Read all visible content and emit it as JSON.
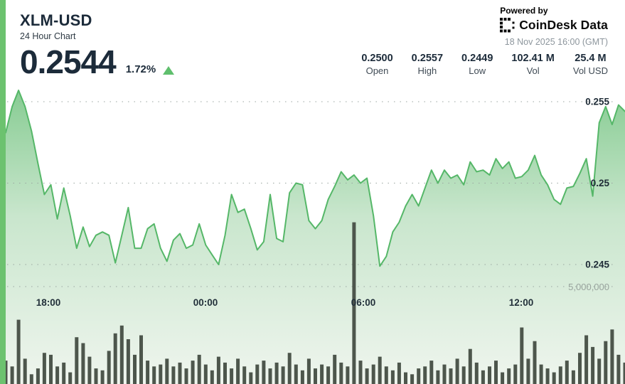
{
  "widget": {
    "pair": "XLM-USD",
    "subtitle": "24 Hour Chart",
    "price": "0.2544",
    "change_percent": "1.72%",
    "change_direction": "up"
  },
  "attribution": {
    "powered_by": "Powered by",
    "brand": "CoinDesk Data",
    "timestamp": "18 Nov 2025 16:00 (GMT)"
  },
  "stats": [
    {
      "value": "0.2500",
      "label": "Open"
    },
    {
      "value": "0.2557",
      "label": "High"
    },
    {
      "value": "0.2449",
      "label": "Low"
    },
    {
      "value": "102.41 M",
      "label": "Vol"
    },
    {
      "value": "25.4 M",
      "label": "Vol USD"
    }
  ],
  "colors": {
    "accent_green": "#6cc26f",
    "line_green": "#55b768",
    "fill_top": "#82ca8e",
    "fill_mid": "#c9e6cd",
    "fill_bottom": "#eff5ee",
    "volume_bar": "#4d564c",
    "grid": "#9aa5a0",
    "triangle_green": "#5fbf6d",
    "text_dark": "#1c2b3a",
    "text_gray": "#8d969d"
  },
  "chart_data": {
    "type": "area",
    "title": "XLM-USD 24 Hour Chart",
    "x_start": "16:00",
    "x_interval_minutes": 15,
    "x_tick_labels": [
      "18:00",
      "00:00",
      "06:00",
      "12:00"
    ],
    "y_ticks": [
      0.255,
      0.25,
      0.245
    ],
    "y_tick_labels": [
      "0.255",
      "0.25",
      "0.245"
    ],
    "y_range": [
      0.2449,
      0.2557
    ],
    "volume_tick_value_millions": 5,
    "volume_tick_label": "5,000,000",
    "legend": "none",
    "grid": "dotted-horizontal",
    "price_series": [
      0.2531,
      0.2547,
      0.2557,
      0.2547,
      0.2532,
      0.2512,
      0.2493,
      0.2499,
      0.2478,
      0.2497,
      0.248,
      0.246,
      0.2473,
      0.2461,
      0.2468,
      0.247,
      0.2468,
      0.2451,
      0.2468,
      0.2485,
      0.246,
      0.246,
      0.2472,
      0.2475,
      0.246,
      0.2452,
      0.2465,
      0.2469,
      0.246,
      0.2462,
      0.2475,
      0.2462,
      0.2456,
      0.245,
      0.2468,
      0.2493,
      0.2482,
      0.2484,
      0.2472,
      0.2459,
      0.2464,
      0.2493,
      0.2466,
      0.2464,
      0.2494,
      0.25,
      0.2499,
      0.2477,
      0.2472,
      0.2477,
      0.249,
      0.2498,
      0.2507,
      0.2502,
      0.2505,
      0.25,
      0.2503,
      0.248,
      0.2449,
      0.2455,
      0.247,
      0.2476,
      0.2486,
      0.2493,
      0.2486,
      0.2497,
      0.2508,
      0.25,
      0.2508,
      0.2503,
      0.2505,
      0.2499,
      0.2513,
      0.2507,
      0.2508,
      0.2505,
      0.2515,
      0.2509,
      0.2513,
      0.2503,
      0.2504,
      0.2508,
      0.2517,
      0.2505,
      0.2499,
      0.249,
      0.2487,
      0.2497,
      0.2498,
      0.2506,
      0.2515,
      0.2492,
      0.2537,
      0.2547,
      0.2536,
      0.2548,
      0.2544
    ],
    "volume_series_millions": [
      1.2,
      0.9,
      3.3,
      1.3,
      0.5,
      0.8,
      1.6,
      1.5,
      0.9,
      1.1,
      0.6,
      2.4,
      2.1,
      1.4,
      0.8,
      0.7,
      1.7,
      2.6,
      3.0,
      2.3,
      1.5,
      2.5,
      1.2,
      0.9,
      1.0,
      1.3,
      0.9,
      1.1,
      0.8,
      1.2,
      1.5,
      1.0,
      0.7,
      1.4,
      1.1,
      0.8,
      1.3,
      0.9,
      0.6,
      1.0,
      1.2,
      0.8,
      1.1,
      0.9,
      1.6,
      1.0,
      0.7,
      1.3,
      0.8,
      1.0,
      0.9,
      1.5,
      1.1,
      0.9,
      8.3,
      1.2,
      0.8,
      1.0,
      1.4,
      0.9,
      0.7,
      1.1,
      0.6,
      0.5,
      0.8,
      0.9,
      1.2,
      0.7,
      1.0,
      0.8,
      1.3,
      0.9,
      1.8,
      1.1,
      0.7,
      0.9,
      1.2,
      0.6,
      0.8,
      1.0,
      2.9,
      1.3,
      2.2,
      1.0,
      0.8,
      0.6,
      0.9,
      1.2,
      0.7,
      1.6,
      2.5,
      1.9,
      1.3,
      2.2,
      2.8,
      1.5,
      1.1
    ]
  }
}
